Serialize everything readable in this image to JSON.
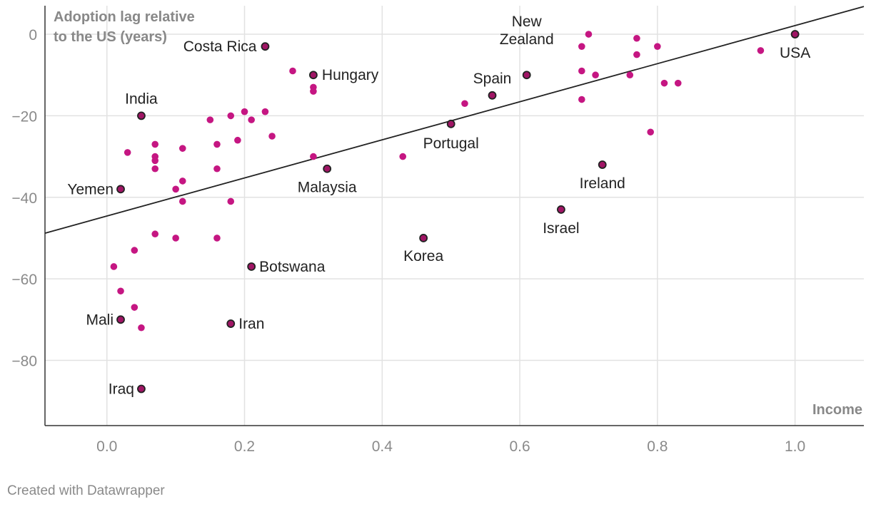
{
  "chart_data": {
    "type": "scatter",
    "ylabel_lines": [
      "Adoption lag relative",
      "to the US (years)"
    ],
    "xlabel": "Income",
    "xlim": [
      -0.09,
      1.1
    ],
    "ylim": [
      -96,
      7
    ],
    "x_ticks": [
      0.0,
      0.2,
      0.4,
      0.6,
      0.8,
      1.0
    ],
    "x_tick_labels": [
      "0.0",
      "0.2",
      "0.4",
      "0.6",
      "0.8",
      "1.0"
    ],
    "y_ticks": [
      0,
      -20,
      -40,
      -60,
      -80
    ],
    "y_tick_labels": [
      "0",
      "−20",
      "−40",
      "−60",
      "−80"
    ],
    "grid": true,
    "colors": {
      "point": "#c51682",
      "labeled_point": "#a01565",
      "outline": "#222222",
      "trend_line": "#222222",
      "grid": "#e2e2e2"
    },
    "trend_line": {
      "x": [
        -0.09,
        1.1
      ],
      "y": [
        -48.8,
        6.8
      ]
    },
    "labeled_points": [
      {
        "name": "Costa Rica",
        "x": 0.23,
        "y": -3,
        "anchor": "end",
        "dx": -12,
        "dy": 7
      },
      {
        "name": "Hungary",
        "x": 0.3,
        "y": -10,
        "anchor": "start",
        "dx": 12,
        "dy": 7
      },
      {
        "name": "India",
        "x": 0.05,
        "y": -20,
        "anchor": "middle",
        "dx": 0,
        "dy": -17
      },
      {
        "name": "Yemen",
        "x": 0.02,
        "y": -38,
        "anchor": "end",
        "dx": -10,
        "dy": 7
      },
      {
        "name": "Malaysia",
        "x": 0.32,
        "y": -33,
        "anchor": "middle",
        "dx": 0,
        "dy": 33
      },
      {
        "name": "Botswana",
        "x": 0.21,
        "y": -57,
        "anchor": "start",
        "dx": 11,
        "dy": 7
      },
      {
        "name": "Mali",
        "x": 0.02,
        "y": -70,
        "anchor": "end",
        "dx": -10,
        "dy": 7
      },
      {
        "name": "Iran",
        "x": 0.18,
        "y": -71,
        "anchor": "start",
        "dx": 11,
        "dy": 7
      },
      {
        "name": "Iraq",
        "x": 0.05,
        "y": -87,
        "anchor": "end",
        "dx": -10,
        "dy": 7
      },
      {
        "name": "Korea",
        "x": 0.46,
        "y": -50,
        "anchor": "middle",
        "dx": 0,
        "dy": 32
      },
      {
        "name": "Portugal",
        "x": 0.5,
        "y": -22,
        "anchor": "middle",
        "dx": 0,
        "dy": 34
      },
      {
        "name": "Spain",
        "x": 0.56,
        "y": -15,
        "anchor": "middle",
        "dx": 0,
        "dy": -17
      },
      {
        "name": "New",
        "x": 0.61,
        "y": -10,
        "anchor": "middle",
        "dx": 0,
        "dy": -68
      },
      {
        "name": "Zealand",
        "x": 0.61,
        "y": -10,
        "anchor": "middle",
        "dx": 0,
        "dy": -43
      },
      {
        "name": "Ireland",
        "x": 0.72,
        "y": -32,
        "anchor": "middle",
        "dx": 0,
        "dy": 33
      },
      {
        "name": "Israel",
        "x": 0.66,
        "y": -43,
        "anchor": "middle",
        "dx": 0,
        "dy": 33
      },
      {
        "name": "USA",
        "x": 1.0,
        "y": 0,
        "anchor": "middle",
        "dx": 0,
        "dy": 33
      }
    ],
    "points": [
      {
        "x": 0.27,
        "y": -9
      },
      {
        "x": 0.3,
        "y": -13
      },
      {
        "x": 0.3,
        "y": -14
      },
      {
        "x": 0.23,
        "y": -19
      },
      {
        "x": 0.2,
        "y": -19
      },
      {
        "x": 0.18,
        "y": -20
      },
      {
        "x": 0.21,
        "y": -21
      },
      {
        "x": 0.15,
        "y": -21
      },
      {
        "x": 0.24,
        "y": -25
      },
      {
        "x": 0.19,
        "y": -26
      },
      {
        "x": 0.16,
        "y": -27
      },
      {
        "x": 0.07,
        "y": -27
      },
      {
        "x": 0.11,
        "y": -28
      },
      {
        "x": 0.03,
        "y": -29
      },
      {
        "x": 0.07,
        "y": -30
      },
      {
        "x": 0.07,
        "y": -31
      },
      {
        "x": 0.07,
        "y": -33
      },
      {
        "x": 0.16,
        "y": -33
      },
      {
        "x": 0.3,
        "y": -30
      },
      {
        "x": 0.11,
        "y": -36
      },
      {
        "x": 0.1,
        "y": -38
      },
      {
        "x": 0.11,
        "y": -41
      },
      {
        "x": 0.18,
        "y": -41
      },
      {
        "x": 0.07,
        "y": -49
      },
      {
        "x": 0.1,
        "y": -50
      },
      {
        "x": 0.16,
        "y": -50
      },
      {
        "x": 0.04,
        "y": -53
      },
      {
        "x": 0.01,
        "y": -57
      },
      {
        "x": 0.02,
        "y": -63
      },
      {
        "x": 0.04,
        "y": -67
      },
      {
        "x": 0.05,
        "y": -72
      },
      {
        "x": 0.43,
        "y": -30
      },
      {
        "x": 0.52,
        "y": -17
      },
      {
        "x": 0.7,
        "y": 0
      },
      {
        "x": 0.69,
        "y": -3
      },
      {
        "x": 0.77,
        "y": -1
      },
      {
        "x": 0.8,
        "y": -3
      },
      {
        "x": 0.77,
        "y": -5
      },
      {
        "x": 0.69,
        "y": -9
      },
      {
        "x": 0.71,
        "y": -10
      },
      {
        "x": 0.76,
        "y": -10
      },
      {
        "x": 0.81,
        "y": -12
      },
      {
        "x": 0.83,
        "y": -12
      },
      {
        "x": 0.69,
        "y": -16
      },
      {
        "x": 0.79,
        "y": -24
      },
      {
        "x": 0.95,
        "y": -4
      }
    ]
  },
  "footer": {
    "credit": "Created with Datawrapper"
  }
}
